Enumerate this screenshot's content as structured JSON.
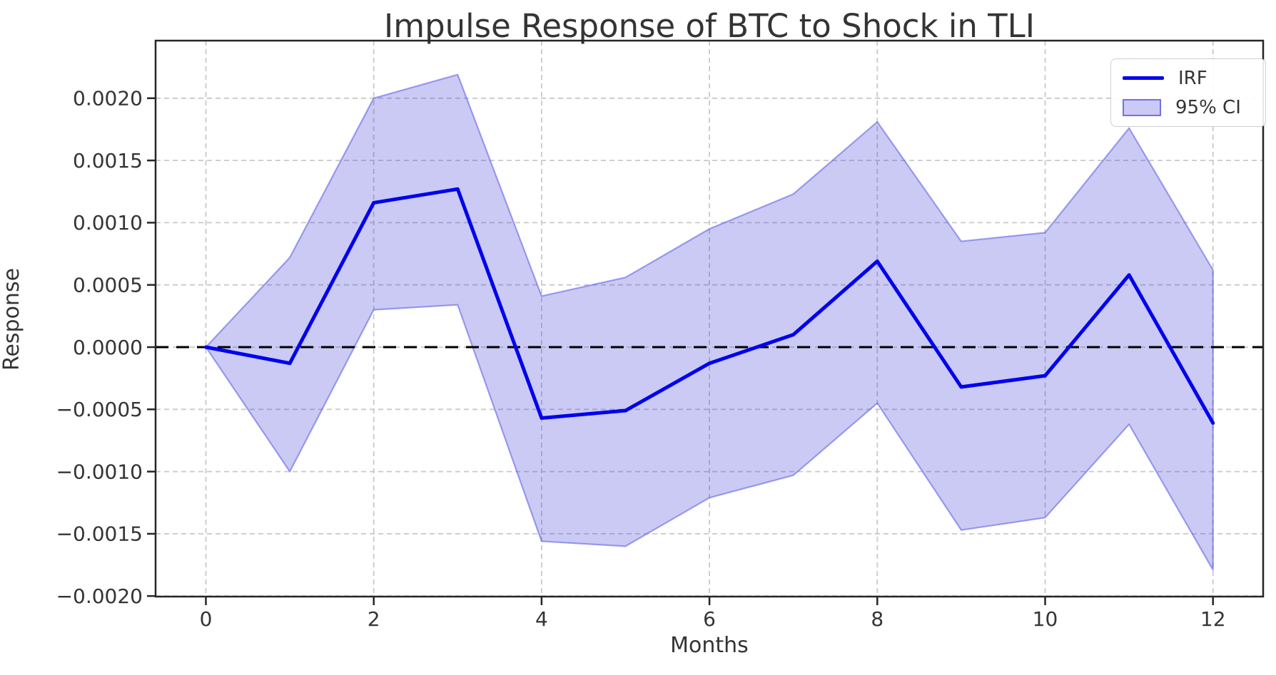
{
  "chart_data": {
    "type": "line",
    "title": "Impulse Response of BTC to Shock in TLI",
    "xlabel": "Months",
    "ylabel": "Response",
    "x": [
      0,
      1,
      2,
      3,
      4,
      5,
      6,
      7,
      8,
      9,
      10,
      11,
      12
    ],
    "series": [
      {
        "name": "IRF",
        "type": "line",
        "values": [
          0.0,
          -0.00013,
          0.00116,
          0.00127,
          -0.00057,
          -0.00051,
          -0.00013,
          0.0001,
          0.00069,
          -0.00032,
          -0.00023,
          0.00058,
          -0.00061
        ]
      },
      {
        "name": "95% CI",
        "type": "band",
        "upper": [
          0.0,
          0.00072,
          0.002,
          0.00219,
          0.00041,
          0.00056,
          0.00095,
          0.00123,
          0.00181,
          0.00085,
          0.00092,
          0.00176,
          0.00062
        ],
        "lower": [
          0.0,
          -0.001,
          0.0003,
          0.00034,
          -0.00156,
          -0.0016,
          -0.00121,
          -0.00103,
          -0.00045,
          -0.00147,
          -0.00137,
          -0.00062,
          -0.00179
        ]
      }
    ],
    "xticks": {
      "values": [
        0,
        2,
        4,
        6,
        8,
        10,
        12
      ],
      "labels": [
        "0",
        "2",
        "4",
        "6",
        "8",
        "10",
        "12"
      ]
    },
    "yticks": {
      "values": [
        0.002,
        0.0015,
        0.001,
        0.0005,
        0.0,
        -0.0005,
        -0.001,
        -0.0015,
        -0.002
      ],
      "labels": [
        "0.0020",
        "0.0015",
        "0.0010",
        "0.0005",
        "0.0000",
        "−0.0005",
        "−0.0010",
        "−0.0015",
        "−0.0020"
      ]
    },
    "xlim": [
      -0.6,
      12.6
    ],
    "ylim": [
      -0.002,
      0.00246
    ],
    "grid": true,
    "zero_line": 0.0,
    "legend": {
      "position": "upper right",
      "items": [
        {
          "label": "IRF",
          "swatch": "line"
        },
        {
          "label": "95% CI",
          "swatch": "patch"
        }
      ]
    },
    "colors": {
      "irf": "#0000ee",
      "ci_fill": "#3a3ad8",
      "ci_fill_opacity": 0.27,
      "ci_edge": "#5a5ae6",
      "zero": "#000000",
      "grid": "#c9c9c9",
      "spine": "#262626",
      "text": "#343434"
    }
  }
}
